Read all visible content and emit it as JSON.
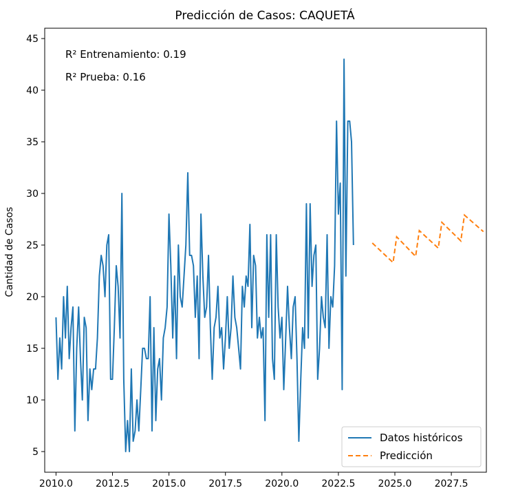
{
  "chart_data": {
    "type": "line",
    "title": "Predicción de Casos: CAQUETÁ",
    "xlabel": "",
    "ylabel": "Cantidad de Casos",
    "xlim": [
      2009.5,
      2029.05
    ],
    "ylim": [
      3.0,
      46.0
    ],
    "xticks": [
      2010.0,
      2012.5,
      2015.0,
      2017.5,
      2020.0,
      2022.5,
      2025.0,
      2027.5
    ],
    "xtick_labels": [
      "2010.0",
      "2012.5",
      "2015.0",
      "2017.5",
      "2020.0",
      "2022.5",
      "2025.0",
      "2027.5"
    ],
    "yticks": [
      5,
      10,
      15,
      20,
      25,
      30,
      35,
      40,
      45
    ],
    "ytick_labels": [
      "5",
      "10",
      "15",
      "20",
      "25",
      "30",
      "35",
      "40",
      "45"
    ],
    "grid": false,
    "legend_position": "lower-right",
    "annotations": [
      "R² Entrenamiento: 0.19",
      "R² Prueba: 0.16"
    ],
    "series": [
      {
        "name": "Datos históricos",
        "color": "#1f77b4",
        "style": "solid",
        "x_start": 2010.0,
        "x_step": 0.08333,
        "values": [
          18,
          12,
          16,
          13,
          20,
          16,
          21,
          14,
          17,
          19,
          7,
          15,
          19,
          14,
          10,
          18,
          17,
          8,
          13,
          11,
          13,
          13,
          16,
          22,
          24,
          23,
          20,
          25,
          26,
          12,
          12,
          17,
          23,
          21,
          16,
          30,
          12,
          5,
          8,
          5,
          13,
          6,
          7,
          10,
          7,
          11,
          15,
          15,
          14,
          14,
          20,
          7,
          17,
          8,
          13,
          14,
          10,
          16,
          17,
          19,
          28,
          23,
          16,
          22,
          14,
          25,
          20,
          19,
          22,
          25,
          32,
          24,
          24,
          23,
          18,
          22,
          14,
          28,
          22,
          18,
          19,
          24,
          17,
          12,
          17,
          18,
          21,
          16,
          17,
          13,
          16,
          20,
          15,
          17,
          22,
          18,
          17,
          15,
          13,
          21,
          19,
          22,
          21,
          27,
          17,
          24,
          23,
          16,
          18,
          16,
          17,
          8,
          26,
          18,
          26,
          14,
          12,
          26,
          19,
          16,
          18,
          11,
          16,
          21,
          17,
          14,
          19,
          20,
          14,
          6,
          12,
          17,
          15,
          29,
          16,
          29,
          21,
          24,
          25,
          12,
          15,
          20,
          18,
          17,
          26,
          15,
          20,
          19,
          23,
          37,
          28,
          31,
          11,
          43,
          22,
          37,
          37,
          35,
          25
        ]
      },
      {
        "name": "Predicción",
        "color": "#ff7f0e",
        "style": "dashed",
        "x": [
          2024.0,
          2024.92,
          2025.08,
          2025.92,
          2026.08,
          2026.92,
          2027.08,
          2027.92,
          2028.08,
          2028.92
        ],
        "values": [
          25.2,
          23.3,
          25.8,
          23.9,
          26.4,
          24.7,
          27.2,
          25.4,
          27.9,
          26.3
        ]
      }
    ]
  }
}
